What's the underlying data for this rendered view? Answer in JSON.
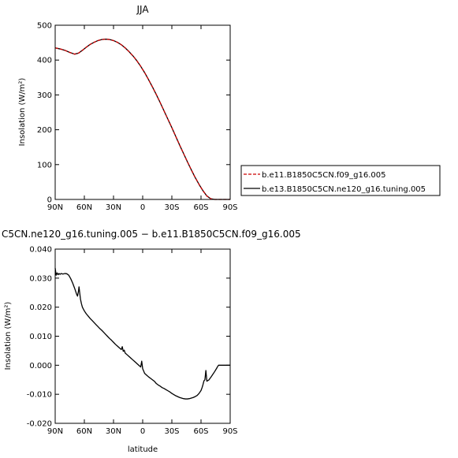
{
  "chart_data": [
    {
      "type": "line",
      "title": "JJA",
      "xlabel": "",
      "ylabel": "Insolation (W/m²)",
      "xlim": [
        90,
        -90
      ],
      "ylim": [
        0,
        500
      ],
      "xticks": [
        90,
        60,
        30,
        0,
        -30,
        -60,
        -90
      ],
      "xtick_labels": [
        "90N",
        "60N",
        "30N",
        "0",
        "30S",
        "60S",
        "90S"
      ],
      "yticks": [
        0,
        100,
        200,
        300,
        400,
        500
      ],
      "ytick_labels": [
        "0",
        "100",
        "200",
        "300",
        "400",
        "500"
      ],
      "grid": false,
      "legend_placement": "right",
      "series": [
        {
          "name": "b.e11.B1850C5CN.f09_g16.005",
          "color": "#cc0000",
          "dash": "dashed",
          "x": [
            90,
            85,
            80,
            75,
            70,
            66,
            62,
            58,
            54,
            50,
            46,
            42,
            38,
            34,
            30,
            26,
            22,
            18,
            14,
            10,
            6,
            2,
            -2,
            -6,
            -10,
            -14,
            -18,
            -22,
            -26,
            -30,
            -34,
            -38,
            -42,
            -46,
            -50,
            -54,
            -58,
            -62,
            -66,
            -70,
            -74,
            -78,
            -82,
            -86,
            -90
          ],
          "y": [
            435,
            432,
            428,
            422,
            417,
            420,
            428,
            437,
            445,
            451,
            456,
            459,
            460,
            459,
            456,
            451,
            444,
            435,
            424,
            412,
            398,
            382,
            364,
            344,
            323,
            301,
            278,
            254,
            230,
            206,
            181,
            156,
            132,
            108,
            85,
            63,
            43,
            25,
            10,
            2,
            0,
            0,
            0,
            0,
            0
          ]
        },
        {
          "name": "b.e13.B1850C5CN.ne120_g16.tuning.005",
          "color": "#000000",
          "dash": "solid",
          "x": [
            90,
            85,
            80,
            75,
            70,
            66,
            62,
            58,
            54,
            50,
            46,
            42,
            38,
            34,
            30,
            26,
            22,
            18,
            14,
            10,
            6,
            2,
            -2,
            -6,
            -10,
            -14,
            -18,
            -22,
            -26,
            -30,
            -34,
            -38,
            -42,
            -46,
            -50,
            -54,
            -58,
            -62,
            -66,
            -70,
            -74,
            -78,
            -82,
            -86,
            -90
          ],
          "y": [
            435,
            432,
            428,
            422,
            417,
            420,
            428,
            437,
            445,
            451,
            456,
            459,
            460,
            459,
            456,
            451,
            444,
            435,
            424,
            412,
            398,
            382,
            364,
            344,
            323,
            301,
            278,
            254,
            230,
            206,
            181,
            156,
            132,
            108,
            85,
            63,
            43,
            25,
            10,
            2,
            0,
            0,
            0,
            0,
            0
          ]
        }
      ]
    },
    {
      "type": "line",
      "title": "C5CN.ne120_g16.tuning.005 − b.e11.B1850C5CN.f09_g16.005",
      "xlabel": "latitude",
      "ylabel": "Insolation (W/m²)",
      "xlim": [
        90,
        -90
      ],
      "ylim": [
        -0.02,
        0.04
      ],
      "xticks": [
        90,
        60,
        30,
        0,
        -30,
        -60,
        -90
      ],
      "xtick_labels": [
        "90N",
        "60N",
        "30N",
        "0",
        "30S",
        "60S",
        "90S"
      ],
      "yticks": [
        -0.02,
        -0.01,
        0.0,
        0.01,
        0.02,
        0.03,
        0.04
      ],
      "ytick_labels": [
        "-0.020",
        "-0.010",
        "0.000",
        "0.010",
        "0.020",
        "0.030",
        "0.040"
      ],
      "grid": false,
      "series": [
        {
          "color": "#000000",
          "dash": "solid",
          "x": [
            90,
            89,
            88,
            87,
            86,
            85,
            84,
            82,
            80,
            78,
            76,
            74,
            72,
            70,
            68,
            67,
            66,
            65.5,
            65,
            64,
            63,
            62,
            60,
            58,
            56,
            54,
            52,
            50,
            48,
            46,
            44,
            42,
            40,
            38,
            36,
            34,
            32,
            30,
            28,
            26,
            24,
            22,
            21,
            20,
            19,
            18,
            16,
            14,
            12,
            10,
            8,
            6,
            4,
            2,
            1,
            0,
            -2,
            -4,
            -6,
            -8,
            -10,
            -12,
            -14,
            -16,
            -18,
            -20,
            -22,
            -24,
            -26,
            -28,
            -30,
            -32,
            -34,
            -36,
            -38,
            -40,
            -42,
            -44,
            -46,
            -48,
            -50,
            -52,
            -54,
            -56,
            -58,
            -60,
            -61,
            -62,
            -63,
            -64,
            -65,
            -66,
            -68,
            -70,
            -72,
            -74,
            -76,
            -77,
            -78,
            -80,
            -82,
            -84,
            -86,
            -88,
            -90
          ],
          "y": [
            0.0335,
            0.031,
            0.0318,
            0.0312,
            0.0316,
            0.0313,
            0.0316,
            0.0314,
            0.0316,
            0.0315,
            0.031,
            0.0298,
            0.0283,
            0.0265,
            0.0245,
            0.0238,
            0.0256,
            0.027,
            0.0256,
            0.0228,
            0.0212,
            0.02,
            0.0187,
            0.0177,
            0.0169,
            0.0161,
            0.0154,
            0.0147,
            0.014,
            0.0133,
            0.0126,
            0.012,
            0.0113,
            0.0106,
            0.0099,
            0.0092,
            0.0086,
            0.0079,
            0.0072,
            0.0066,
            0.006,
            0.0054,
            0.0064,
            0.0048,
            0.0052,
            0.0042,
            0.0036,
            0.003,
            0.0024,
            0.0018,
            0.0012,
            0.0006,
            0.0,
            -0.0006,
            0.0014,
            -0.0012,
            -0.0028,
            -0.0034,
            -0.004,
            -0.0045,
            -0.005,
            -0.0055,
            -0.0063,
            -0.0068,
            -0.0072,
            -0.0077,
            -0.008,
            -0.0084,
            -0.0088,
            -0.0092,
            -0.0097,
            -0.0101,
            -0.0105,
            -0.0108,
            -0.0111,
            -0.0113,
            -0.0115,
            -0.0116,
            -0.0116,
            -0.0115,
            -0.0113,
            -0.0111,
            -0.0108,
            -0.0104,
            -0.0097,
            -0.0087,
            -0.0078,
            -0.0067,
            -0.0054,
            -0.005,
            -0.0018,
            -0.0055,
            -0.0051,
            -0.0042,
            -0.0032,
            -0.0022,
            -0.0011,
            -0.0005,
            0.0,
            0.0,
            0.0,
            0.0,
            0.0,
            0.0,
            0.0
          ]
        }
      ]
    }
  ]
}
